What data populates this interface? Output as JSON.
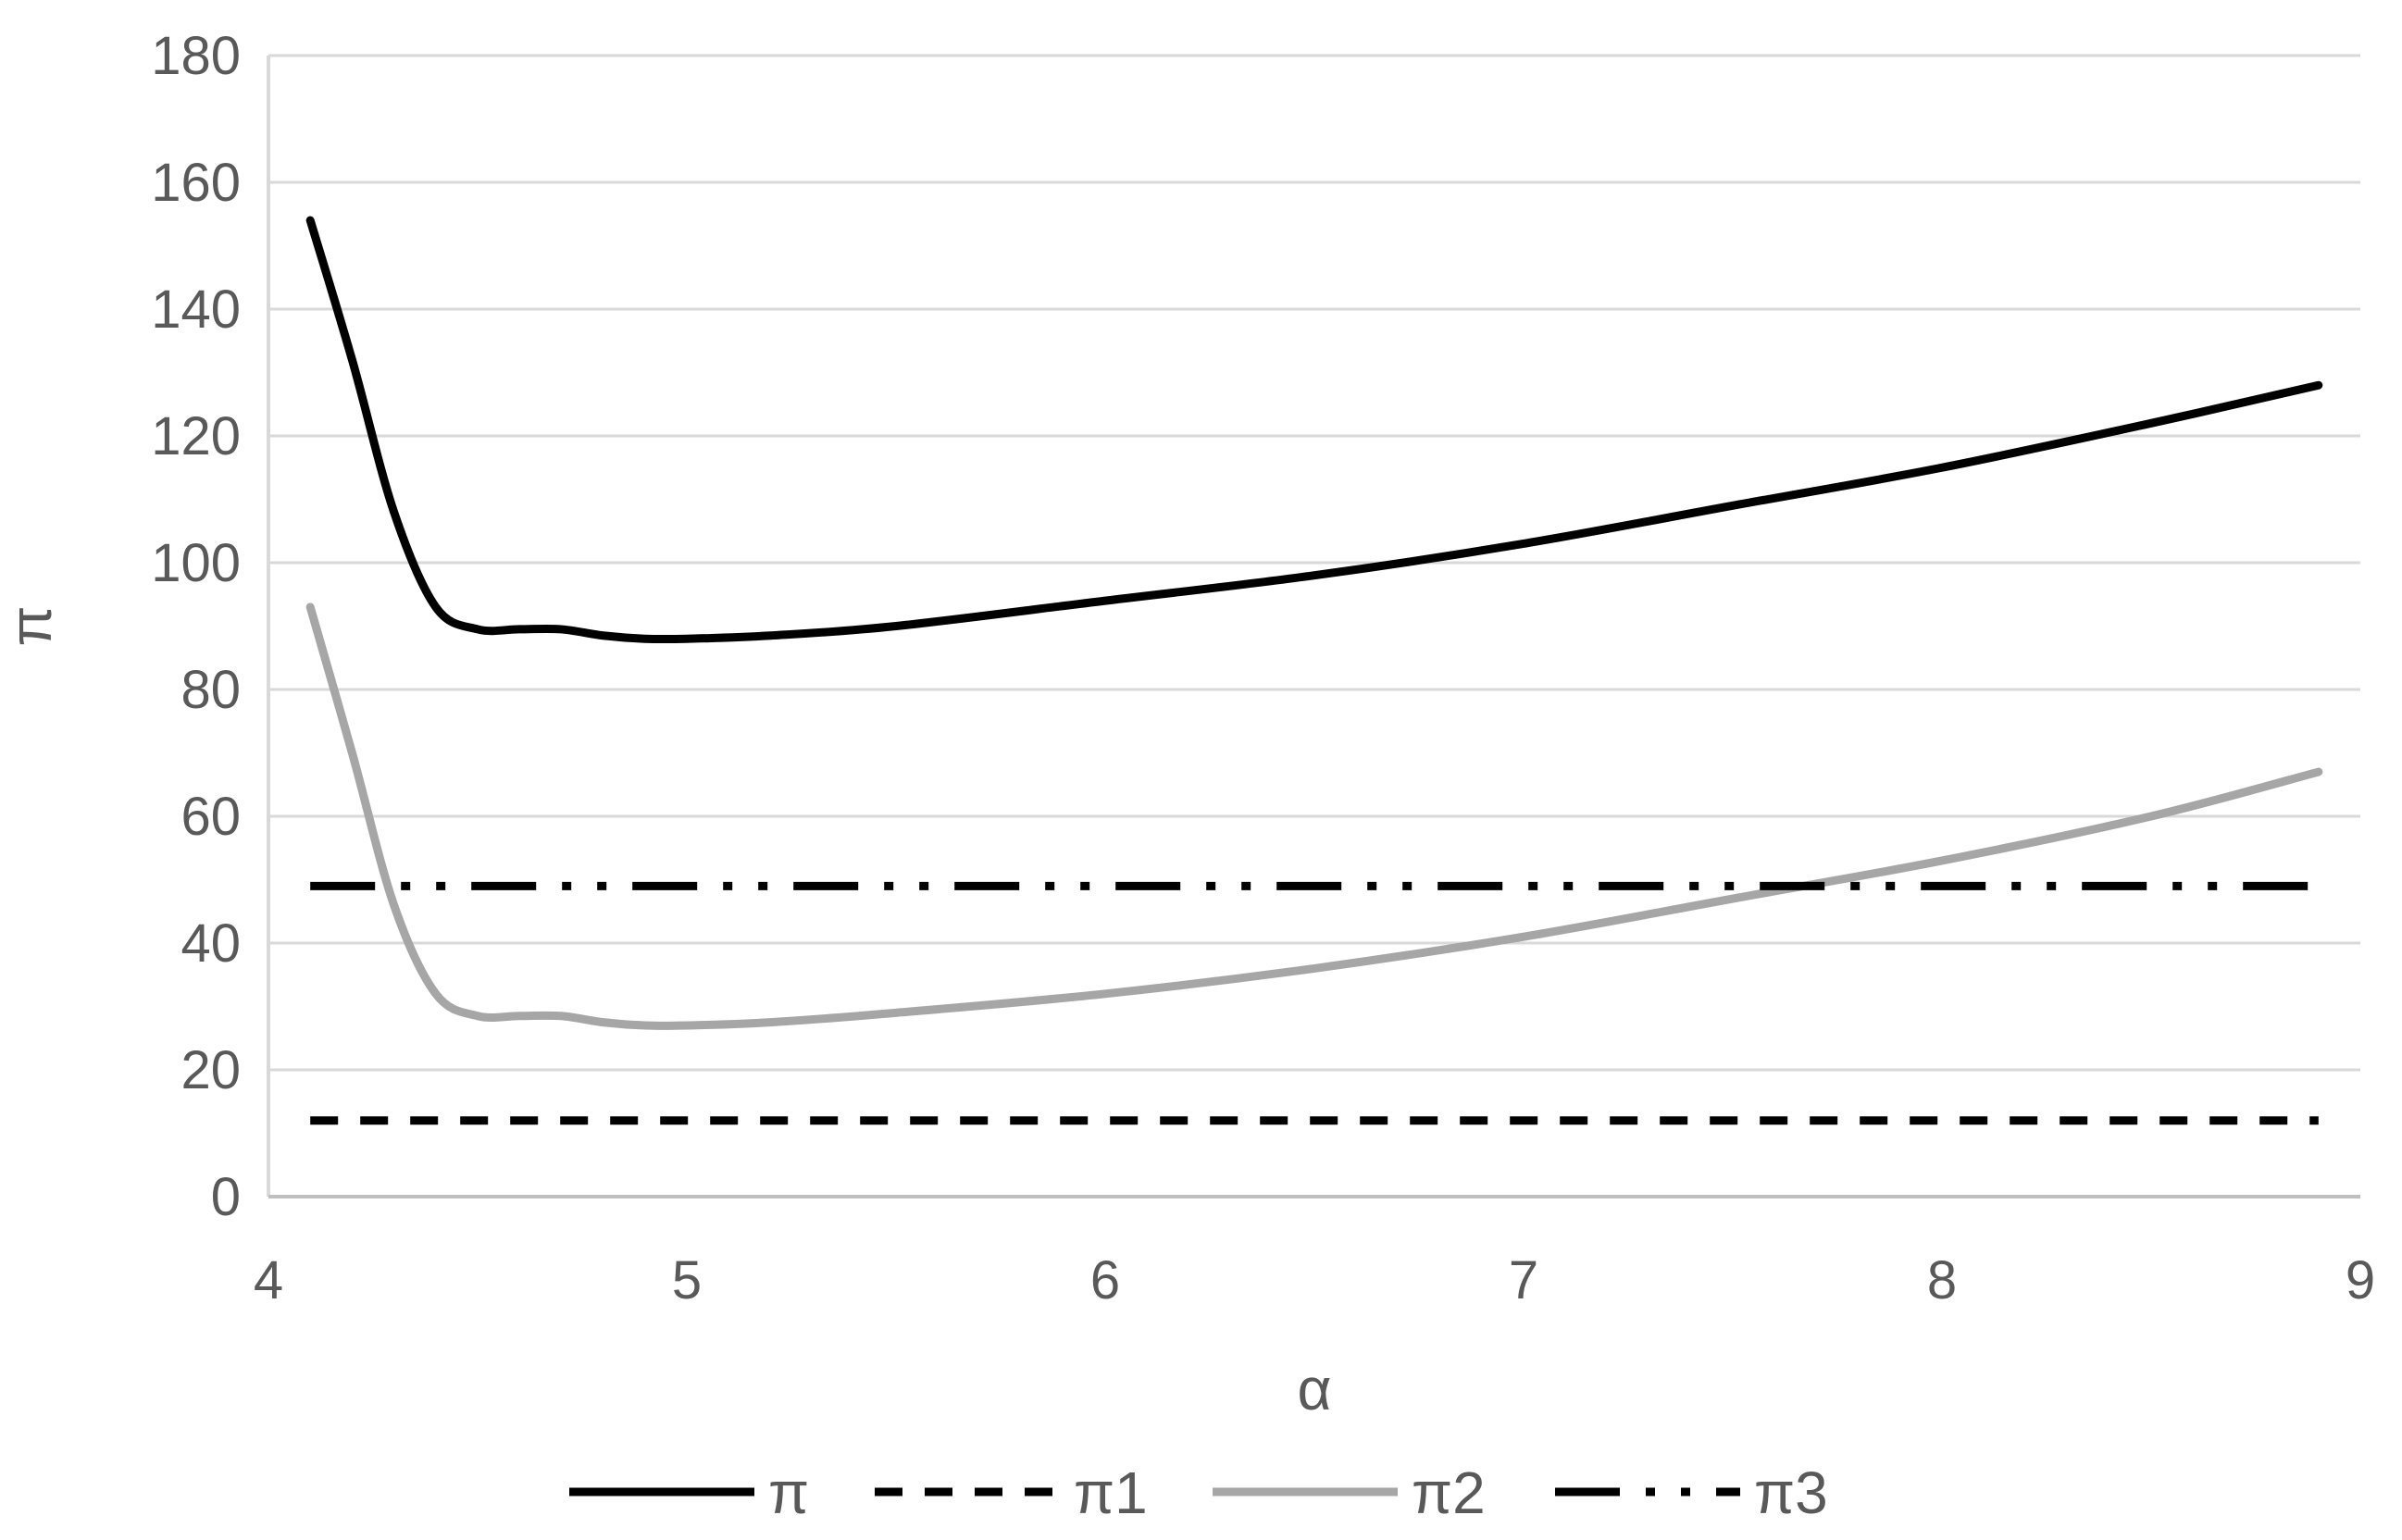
{
  "chart_data": {
    "type": "line",
    "title": "",
    "xlabel": "α",
    "ylabel": "π",
    "xlim": [
      4,
      9
    ],
    "ylim": [
      0,
      180
    ],
    "xticks": [
      "4",
      "5",
      "6",
      "7",
      "8",
      "9"
    ],
    "yticks": [
      "0",
      "20",
      "40",
      "60",
      "80",
      "100",
      "120",
      "140",
      "160",
      "180"
    ],
    "grid": true,
    "legend_position": "bottom",
    "series": [
      {
        "name": "π",
        "color": "#000000",
        "style": "solid",
        "x": [
          4.1,
          4.2,
          4.3,
          4.4,
          4.5,
          4.6,
          4.7,
          4.8,
          4.9,
          5.0,
          5.2,
          5.5,
          6.0,
          6.5,
          7.0,
          7.5,
          8.0,
          8.5,
          8.9
        ],
        "y": [
          154,
          132,
          108,
          93,
          89.5,
          89.5,
          89.5,
          88.5,
          88,
          88,
          88.5,
          90,
          94,
          98,
          103,
          109,
          115,
          122,
          128
        ]
      },
      {
        "name": "π1",
        "color": "#000000",
        "style": "dashed",
        "x": [
          4.1,
          8.9
        ],
        "y": [
          12,
          12
        ]
      },
      {
        "name": "π2",
        "color": "#a6a6a6",
        "style": "solid",
        "x": [
          4.1,
          4.2,
          4.3,
          4.4,
          4.5,
          4.6,
          4.7,
          4.8,
          4.9,
          5.0,
          5.2,
          5.5,
          6.0,
          6.5,
          7.0,
          7.5,
          8.0,
          8.5,
          8.9
        ],
        "y": [
          93,
          70,
          46,
          32,
          28.5,
          28.5,
          28.5,
          27.5,
          27,
          27,
          27.5,
          29,
          32,
          36,
          41,
          47,
          53,
          60,
          67
        ]
      },
      {
        "name": "π3",
        "color": "#000000",
        "style": "dash-dot-dot",
        "x": [
          4.1,
          8.9
        ],
        "y": [
          49,
          49
        ]
      }
    ]
  }
}
